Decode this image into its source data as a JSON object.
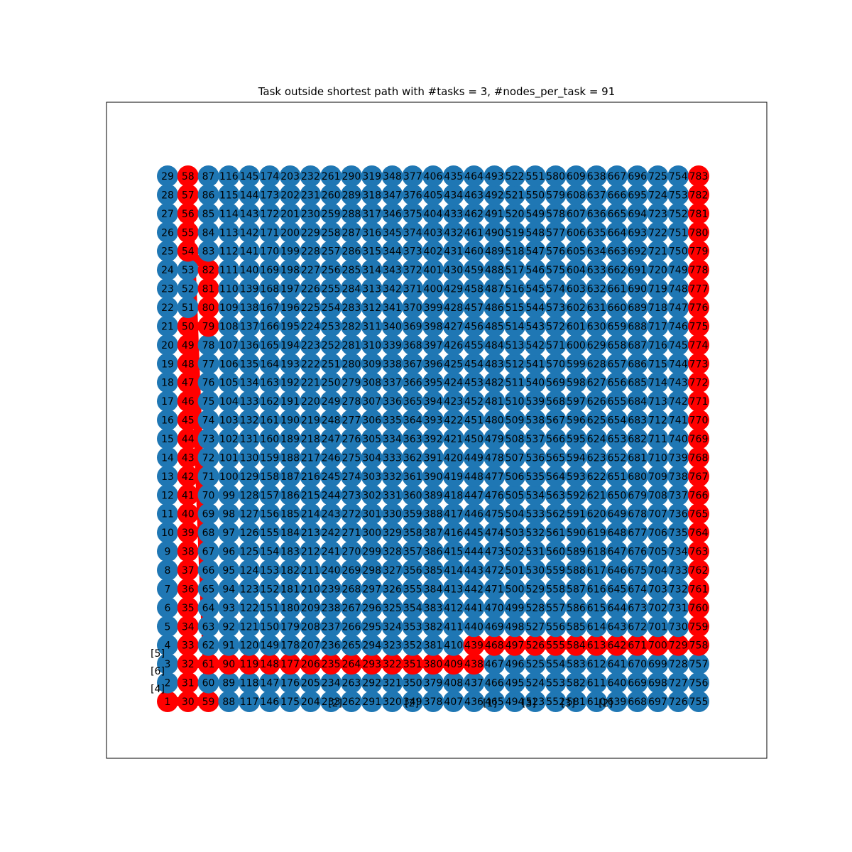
{
  "figure": {
    "title": "Task outside shortest path with #tasks = 3, #nodes_per_task = 91"
  },
  "graph": {
    "type": "grid-graph",
    "rows": 29,
    "cols": 27,
    "node_count": 783,
    "first_node_id": 1,
    "numbering": "column-major, bottom-to-top within each column",
    "node_color": "#1f77b4",
    "path_color": "#ff0000",
    "edge_color": "#ffffff",
    "label_color": "#000000",
    "shortest_path": [
      1,
      30,
      59,
      58,
      57,
      56,
      55,
      54,
      82,
      81,
      80,
      79,
      50,
      49,
      48,
      47,
      46,
      45,
      44,
      43,
      42,
      41,
      40,
      39,
      38,
      37,
      36,
      35,
      34,
      33,
      32,
      31,
      32,
      61,
      90,
      119,
      148,
      177,
      206,
      235,
      264,
      293,
      322,
      351,
      380,
      409,
      438,
      439,
      468,
      497,
      526,
      555,
      584,
      613,
      642,
      671,
      700,
      729,
      758,
      759,
      760,
      761,
      762,
      763,
      764,
      765,
      766,
      767,
      768,
      769,
      770,
      771,
      772,
      773,
      774,
      775,
      776,
      777,
      778,
      779,
      780,
      781,
      782,
      783
    ],
    "task_markers": [
      {
        "label": "[5]"
      },
      {
        "label": "[6]"
      },
      {
        "label": "[4]"
      },
      {
        "label": "[2]"
      },
      {
        "label": "[2]"
      },
      {
        "label": "[1]"
      },
      {
        "label": "[3]"
      },
      {
        "label": "[3]"
      },
      {
        "label": "[2]"
      }
    ]
  }
}
